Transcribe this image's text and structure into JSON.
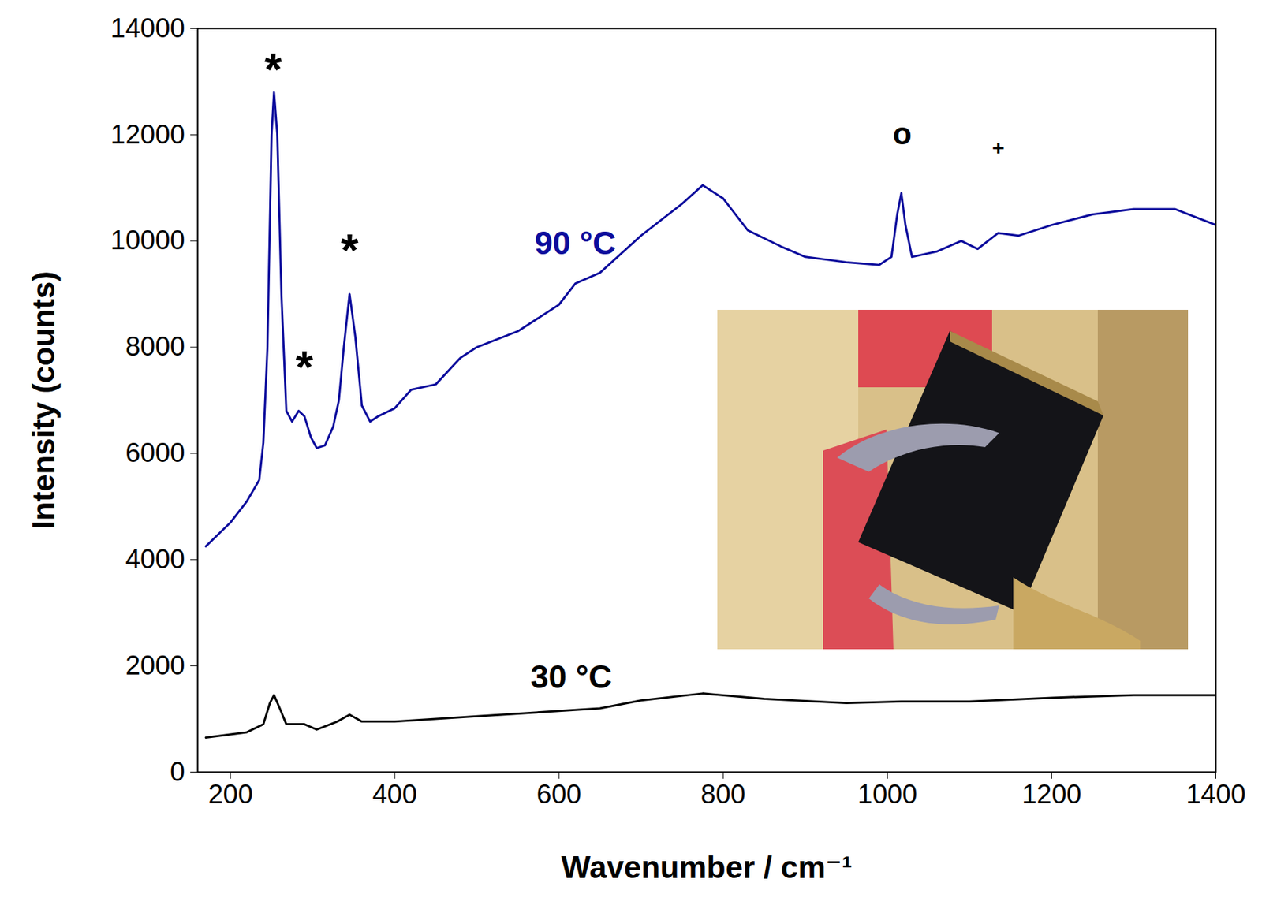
{
  "chart_data": {
    "type": "line",
    "xlabel": "Wavenumber / cm⁻¹",
    "ylabel": "Intensity (counts)",
    "xlim": [
      160,
      1400
    ],
    "xticks": [
      200,
      400,
      600,
      800,
      1000,
      1200,
      1400
    ],
    "ylim": [
      0,
      14000
    ],
    "yticks": [
      0,
      2000,
      4000,
      6000,
      8000,
      10000,
      12000,
      14000
    ],
    "grid": false,
    "series": [
      {
        "name": "90 °C",
        "color": "#0c0c9c",
        "label_position": [
          620,
          9950
        ],
        "x": [
          170,
          200,
          220,
          235,
          240,
          245,
          250,
          253,
          257,
          262,
          268,
          275,
          283,
          290,
          298,
          305,
          315,
          325,
          332,
          338,
          345,
          352,
          360,
          370,
          380,
          400,
          420,
          450,
          480,
          500,
          550,
          600,
          620,
          650,
          700,
          750,
          775,
          800,
          830,
          870,
          900,
          950,
          990,
          1005,
          1012,
          1017,
          1022,
          1030,
          1060,
          1090,
          1110,
          1135,
          1160,
          1200,
          1250,
          1300,
          1350,
          1400
        ],
        "values": [
          4250,
          4700,
          5100,
          5500,
          6200,
          8000,
          12000,
          12800,
          12000,
          9000,
          6800,
          6600,
          6800,
          6700,
          6300,
          6100,
          6150,
          6500,
          7000,
          8000,
          9000,
          8200,
          6900,
          6600,
          6700,
          6850,
          7200,
          7300,
          7800,
          8000,
          8300,
          8800,
          9200,
          9400,
          10100,
          10700,
          11050,
          10800,
          10200,
          9900,
          9700,
          9600,
          9550,
          9700,
          10500,
          10900,
          10300,
          9700,
          9800,
          10000,
          9850,
          10150,
          10100,
          10300,
          10500,
          10600,
          10600,
          10300
        ]
      },
      {
        "name": "30 °C",
        "color": "#000000",
        "label_position": [
          615,
          1780
        ],
        "x": [
          170,
          220,
          240,
          248,
          253,
          260,
          268,
          290,
          305,
          330,
          345,
          360,
          400,
          500,
          600,
          650,
          700,
          775,
          850,
          950,
          1017,
          1100,
          1200,
          1300,
          1400
        ],
        "values": [
          650,
          750,
          900,
          1300,
          1450,
          1200,
          900,
          900,
          800,
          950,
          1080,
          950,
          950,
          1050,
          1150,
          1200,
          1350,
          1480,
          1380,
          1300,
          1330,
          1330,
          1400,
          1450,
          1450
        ]
      }
    ],
    "annotations": [
      {
        "text": "*",
        "x": 252,
        "y": 13200
      },
      {
        "text": "*",
        "x": 290,
        "y": 7600
      },
      {
        "text": "*",
        "x": 345,
        "y": 9800
      },
      {
        "text": "o",
        "x": 1018,
        "y": 12000
      },
      {
        "text": "+",
        "x": 1135,
        "y": 11750
      }
    ]
  }
}
